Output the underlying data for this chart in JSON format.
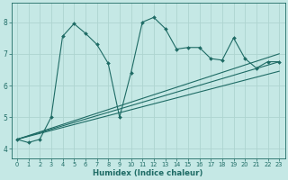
{
  "xlabel": "Humidex (Indice chaleur)",
  "xlim": [
    -0.5,
    23.5
  ],
  "ylim": [
    3.7,
    8.6
  ],
  "yticks": [
    4,
    5,
    6,
    7,
    8
  ],
  "xticks": [
    0,
    1,
    2,
    3,
    4,
    5,
    6,
    7,
    8,
    9,
    10,
    11,
    12,
    13,
    14,
    15,
    16,
    17,
    18,
    19,
    20,
    21,
    22,
    23
  ],
  "bg_color": "#c5e8e5",
  "line_color": "#1e6b65",
  "grid_color": "#aed4d0",
  "zigzag": {
    "x": [
      0,
      1,
      2,
      3,
      4,
      5,
      6,
      7,
      8,
      9,
      10,
      11,
      12,
      13,
      14,
      15,
      16,
      17,
      18,
      19,
      20,
      21,
      22,
      23
    ],
    "y": [
      4.3,
      4.2,
      4.3,
      5.0,
      7.55,
      7.95,
      7.65,
      7.3,
      6.7,
      5.0,
      6.4,
      8.0,
      8.15,
      7.8,
      7.15,
      7.2,
      7.2,
      6.85,
      6.8,
      7.5,
      6.85,
      6.55,
      6.75,
      6.75
    ]
  },
  "trend_lines": [
    {
      "x": [
        0,
        23
      ],
      "y": [
        4.3,
        6.75
      ]
    },
    {
      "x": [
        0,
        23
      ],
      "y": [
        4.3,
        6.45
      ]
    },
    {
      "x": [
        0,
        23
      ],
      "y": [
        4.3,
        7.0
      ]
    }
  ]
}
